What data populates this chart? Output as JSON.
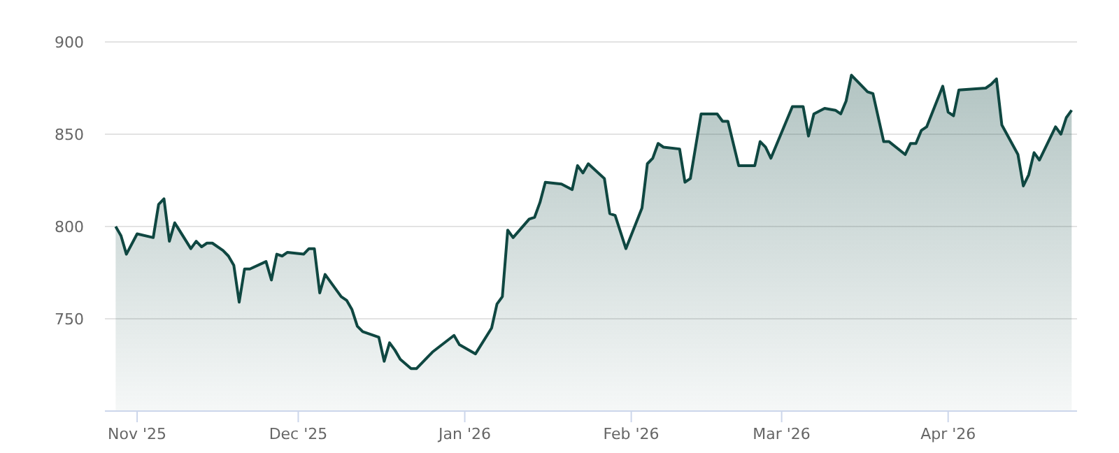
{
  "chart_data": {
    "type": "area",
    "xlim": [
      "2025-10-26",
      "2026-04-25"
    ],
    "xticks": [
      {
        "value": "2025-11-01",
        "label": "Nov '25"
      },
      {
        "value": "2025-12-01",
        "label": "Dec '25"
      },
      {
        "value": "2026-01-01",
        "label": "Jan '26"
      },
      {
        "value": "2026-02-01",
        "label": "Feb '26"
      },
      {
        "value": "2026-03-01",
        "label": "Mar '26"
      },
      {
        "value": "2026-04-01",
        "label": "Apr '26"
      }
    ],
    "ylim": [
      700,
      900
    ],
    "yticks": [
      750,
      800,
      850,
      900
    ],
    "grid": "y",
    "x": [
      "2025-10-28",
      "2025-10-29",
      "2025-10-30",
      "2025-11-01",
      "2025-11-04",
      "2025-11-05",
      "2025-11-06",
      "2025-11-07",
      "2025-11-08",
      "2025-11-11",
      "2025-11-12",
      "2025-11-13",
      "2025-11-14",
      "2025-11-15",
      "2025-11-17",
      "2025-11-18",
      "2025-11-19",
      "2025-11-20",
      "2025-11-21",
      "2025-11-22",
      "2025-11-25",
      "2025-11-26",
      "2025-11-27",
      "2025-11-28",
      "2025-11-29",
      "2025-12-02",
      "2025-12-03",
      "2025-12-04",
      "2025-12-05",
      "2025-12-06",
      "2025-12-09",
      "2025-12-10",
      "2025-12-11",
      "2025-12-12",
      "2025-12-13",
      "2025-12-16",
      "2025-12-17",
      "2025-12-18",
      "2025-12-19",
      "2025-12-20",
      "2025-12-22",
      "2025-12-23",
      "2025-12-26",
      "2025-12-30",
      "2025-12-31",
      "2026-01-03",
      "2026-01-06",
      "2026-01-07",
      "2026-01-08",
      "2026-01-09",
      "2026-01-10",
      "2026-01-13",
      "2026-01-14",
      "2026-01-15",
      "2026-01-16",
      "2026-01-19",
      "2026-01-21",
      "2026-01-22",
      "2026-01-23",
      "2026-01-24",
      "2026-01-27",
      "2026-01-28",
      "2026-01-29",
      "2026-01-31",
      "2026-02-03",
      "2026-02-04",
      "2026-02-05",
      "2026-02-06",
      "2026-02-07",
      "2026-02-10",
      "2026-02-11",
      "2026-02-12",
      "2026-02-14",
      "2026-02-17",
      "2026-02-18",
      "2026-02-19",
      "2026-02-21",
      "2026-02-24",
      "2026-02-25",
      "2026-02-26",
      "2026-02-27",
      "2026-03-03",
      "2026-03-05",
      "2026-03-06",
      "2026-03-07",
      "2026-03-09",
      "2026-03-11",
      "2026-03-12",
      "2026-03-13",
      "2026-03-14",
      "2026-03-17",
      "2026-03-18",
      "2026-03-20",
      "2026-03-21",
      "2026-03-24",
      "2026-03-25",
      "2026-03-26",
      "2026-03-27",
      "2026-03-28",
      "2026-03-31",
      "2026-04-01",
      "2026-04-02",
      "2026-04-03",
      "2026-04-08",
      "2026-04-09",
      "2026-04-10",
      "2026-04-11",
      "2026-04-14",
      "2026-04-15",
      "2026-04-16",
      "2026-04-17",
      "2026-04-18",
      "2026-04-21",
      "2026-04-22",
      "2026-04-23",
      "2026-04-24"
    ],
    "series": [
      {
        "color": "#0f4741",
        "values": [
          800,
          795,
          785,
          796,
          794,
          812,
          815,
          792,
          802,
          788,
          792,
          789,
          791,
          791,
          787,
          784,
          779,
          759,
          777,
          777,
          781,
          771,
          785,
          784,
          786,
          785,
          788,
          788,
          764,
          774,
          762,
          760,
          755,
          746,
          743,
          740,
          727,
          737,
          733,
          728,
          723,
          723,
          732,
          741,
          736,
          731,
          745,
          758,
          762,
          798,
          794,
          804,
          805,
          813,
          824,
          823,
          820,
          833,
          829,
          834,
          826,
          807,
          806,
          788,
          810,
          834,
          837,
          845,
          843,
          842,
          824,
          826,
          861,
          861,
          857,
          857,
          833,
          833,
          846,
          843,
          837,
          865,
          865,
          849,
          861,
          864,
          863,
          861,
          868,
          882,
          873,
          872,
          846,
          846,
          839,
          845,
          845,
          852,
          854,
          876,
          862,
          860,
          874,
          875,
          877,
          880,
          855,
          839,
          822,
          828,
          840,
          836,
          854,
          850,
          859,
          863
        ]
      }
    ]
  }
}
